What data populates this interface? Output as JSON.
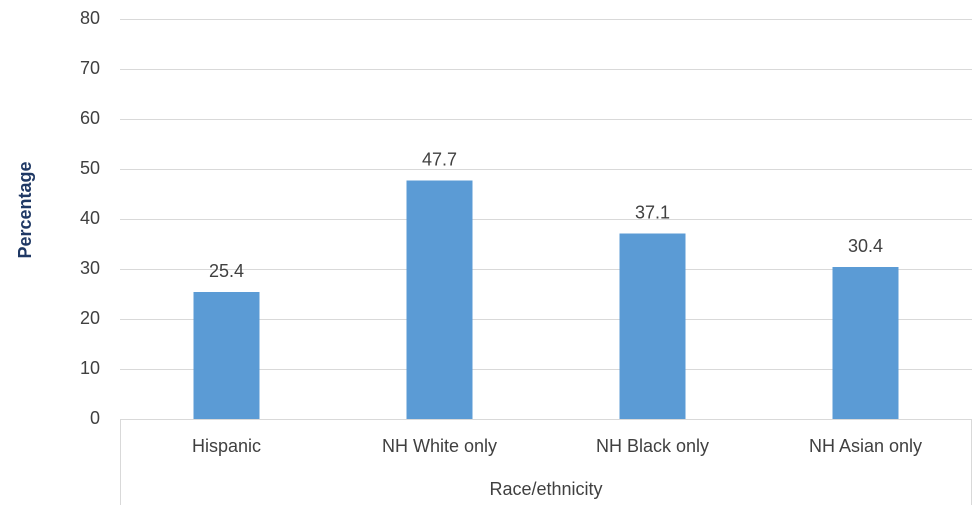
{
  "chart_data": {
    "type": "bar",
    "x_label": "Race/ethnicity",
    "y_label": "Percentage",
    "categories": [
      "Hispanic",
      "NH White only",
      "NH Black only",
      "NH Asian only"
    ],
    "values": [
      25.4,
      47.7,
      37.1,
      30.4
    ],
    "color": "#5b9bd5",
    "ylim": [
      0,
      80
    ],
    "yticks": [
      0,
      10,
      20,
      30,
      40,
      50,
      60,
      70,
      80
    ],
    "grid": true,
    "data_labels": true
  }
}
